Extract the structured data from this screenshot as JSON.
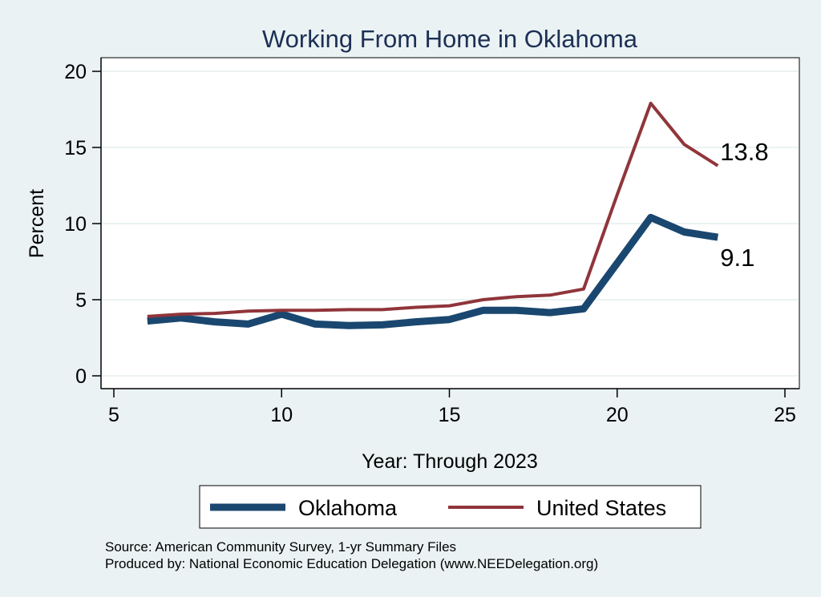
{
  "chart_data": {
    "type": "line",
    "title": "Working From Home in Oklahoma",
    "xlabel": "Year: Through 2023",
    "ylabel": "Percent",
    "xlim": [
      5,
      25
    ],
    "ylim": [
      0,
      20
    ],
    "xticks": [
      5,
      10,
      15,
      20,
      25
    ],
    "yticks": [
      0,
      5,
      10,
      15,
      20
    ],
    "grid": "horizontal",
    "legend_position": "bottom",
    "x": [
      6,
      7,
      8,
      9,
      10,
      11,
      12,
      13,
      14,
      15,
      16,
      17,
      18,
      19,
      20,
      21,
      22,
      23
    ],
    "series": [
      {
        "name": "Oklahoma",
        "color": "#1a476f",
        "values": [
          3.6,
          3.8,
          3.55,
          3.4,
          4.05,
          3.4,
          3.3,
          3.35,
          3.55,
          3.7,
          4.3,
          4.3,
          4.15,
          4.4,
          7.4,
          10.4,
          9.45,
          9.1
        ],
        "end_label": "9.1"
      },
      {
        "name": "United States",
        "color": "#90353b",
        "values": [
          3.9,
          4.05,
          4.1,
          4.25,
          4.3,
          4.3,
          4.35,
          4.35,
          4.5,
          4.6,
          5.0,
          5.2,
          5.3,
          5.7,
          11.9,
          17.9,
          15.2,
          13.8
        ],
        "end_label": "13.8"
      }
    ]
  },
  "notes": {
    "source": "Source: American Community Survey, 1-yr Summary Files",
    "produced_by": "Produced by: National Economic Education Delegation (www.NEEDelegation.org)"
  }
}
